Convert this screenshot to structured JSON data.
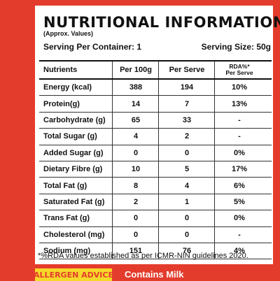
{
  "header": {
    "title": "NUTRITIONAL INFORMATION",
    "subtitle": "(Approx. Values)"
  },
  "serving": {
    "container": "Serving Per Container: 1",
    "size": "Serving Size: 50g"
  },
  "table": {
    "columns": [
      "Nutrients",
      "Per 100g",
      "Per Serve",
      [
        "RDA%*",
        "Per Serve"
      ]
    ],
    "rows": [
      [
        "Energy (kcal)",
        "388",
        "194",
        "10%"
      ],
      [
        "Protein(g)",
        "14",
        "7",
        "13%"
      ],
      [
        "Carbohydrate (g)",
        "65",
        "33",
        "-"
      ],
      [
        "Total Sugar (g)",
        "4",
        "2",
        "-"
      ],
      [
        "Added Sugar (g)",
        "0",
        "0",
        "0%"
      ],
      [
        "Dietary Fibre (g)",
        "10",
        "5",
        "17%"
      ],
      [
        "Total Fat (g)",
        "8",
        "4",
        "6%"
      ],
      [
        "Saturated Fat (g)",
        "2",
        "1",
        "5%"
      ],
      [
        "Trans Fat (g)",
        "0",
        "0",
        "0%"
      ],
      [
        "Cholesterol (mg)",
        "0",
        "0",
        "-"
      ],
      [
        "Sodium (mg)",
        "151",
        "76",
        "4%"
      ]
    ]
  },
  "footnote": "*%RDA values established as per ICMR-NIN guidelines 2020.",
  "allergen": {
    "label": "ALLERGEN ADVICE",
    "text": "Contains Milk"
  }
}
